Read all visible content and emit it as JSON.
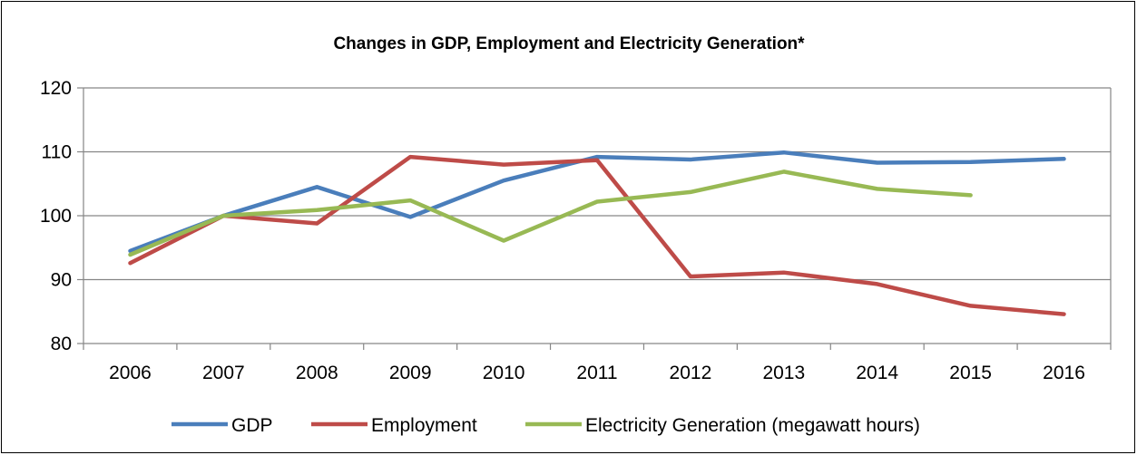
{
  "chart_data": {
    "type": "line",
    "title": "Changes in GDP, Employment and Electricity Generation*",
    "xlabel": "",
    "ylabel": "",
    "categories": [
      "2006",
      "2007",
      "2008",
      "2009",
      "2010",
      "2011",
      "2012",
      "2013",
      "2014",
      "2015",
      "2016"
    ],
    "ylim": [
      80,
      120
    ],
    "yticks": [
      80,
      90,
      100,
      110,
      120
    ],
    "grid": true,
    "legend_position": "bottom",
    "series": [
      {
        "name": "GDP",
        "color": "#4a7ebb",
        "values": [
          94.5,
          100,
          104.5,
          99.8,
          105.5,
          109.2,
          108.8,
          109.9,
          108.3,
          108.4,
          108.9
        ]
      },
      {
        "name": "Employment",
        "color": "#be4b48",
        "values": [
          92.6,
          100,
          98.8,
          109.2,
          108.0,
          108.7,
          90.5,
          91.1,
          89.3,
          85.9,
          84.6
        ]
      },
      {
        "name": "Electricity Generation (megawatt hours)",
        "color": "#98b954",
        "values": [
          93.9,
          100,
          100.9,
          102.4,
          96.1,
          102.2,
          103.7,
          106.9,
          104.2,
          103.2,
          null
        ]
      }
    ]
  }
}
